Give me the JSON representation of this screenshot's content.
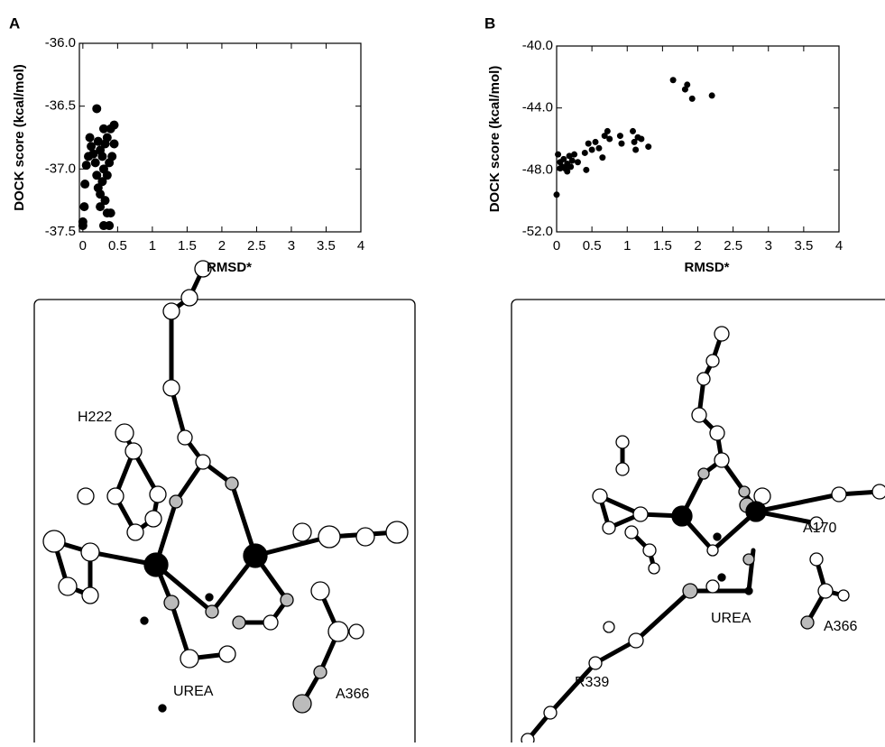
{
  "chart_data": [
    {
      "type": "scatter",
      "title": "A",
      "xlabel": "RMSD*",
      "ylabel": "DOCK score (kcal/mol)",
      "color": "#000000",
      "x": [
        0.0,
        0.02,
        0.03,
        0.05,
        0.08,
        0.1,
        0.12,
        0.15,
        0.2,
        0.18,
        0.2,
        0.22,
        0.25,
        0.22,
        0.25,
        0.28,
        0.3,
        0.32,
        0.3,
        0.28,
        0.32,
        0.35,
        0.3,
        0.38,
        0.4,
        0.35,
        0.38,
        0.4,
        0.45,
        0.45,
        0.42,
        0.35,
        0.25,
        0.0
      ],
      "values": [
        -37.45,
        -37.3,
        -37.12,
        -36.97,
        -36.9,
        -36.75,
        -36.82,
        -36.88,
        -36.52,
        -36.95,
        -37.05,
        -37.15,
        -37.2,
        -36.78,
        -36.85,
        -36.9,
        -36.68,
        -36.8,
        -37.0,
        -37.1,
        -37.25,
        -37.35,
        -37.45,
        -37.45,
        -37.35,
        -37.05,
        -36.95,
        -36.68,
        -36.65,
        -36.8,
        -36.9,
        -36.75,
        -37.3,
        -37.42
      ],
      "xlim": [
        -0.05,
        4
      ],
      "xticks": [
        0,
        0.5,
        1,
        1.5,
        2,
        2.5,
        3,
        3.5,
        4
      ],
      "ylim": [
        -37.5,
        -36.0
      ],
      "yticks": [
        {
          "value": -36,
          "label": "-36.0"
        },
        -36.5,
        {
          "value": -37,
          "label": "-37.0"
        },
        -37.5
      ]
    },
    {
      "type": "scatter",
      "title": "B",
      "xlabel": "RMSD*",
      "ylabel": "DOCK score (kcal/mol)",
      "color": "#000000",
      "x": [
        0,
        0.02,
        0.05,
        0.08,
        0.1,
        0.12,
        0.15,
        0.18,
        0.2,
        0.22,
        0.25,
        0.3,
        0.42,
        0.45,
        0.5,
        0.55,
        0.6,
        0.65,
        0.68,
        0.72,
        0.75,
        0.9,
        0.92,
        1.08,
        1.1,
        1.12,
        1.15,
        1.2,
        1.3,
        1.65,
        1.82,
        1.85,
        1.92,
        2.2,
        0.4,
        0.05,
        0.15
      ],
      "values": [
        -49.6,
        -47.0,
        -47.5,
        -47.8,
        -47.3,
        -47.9,
        -47.6,
        -47.1,
        -47.8,
        -47.4,
        -47.0,
        -47.5,
        -48.0,
        -46.3,
        -46.7,
        -46.2,
        -46.6,
        -47.2,
        -45.8,
        -45.5,
        -46.0,
        -45.8,
        -46.3,
        -45.5,
        -46.2,
        -46.7,
        -45.9,
        -46.0,
        -46.5,
        -42.2,
        -42.8,
        -42.5,
        -43.4,
        -43.2,
        -46.9,
        -47.9,
        -48.1
      ],
      "xlim": [
        0,
        4
      ],
      "xticks": [
        0,
        0.5,
        1,
        1.5,
        2,
        2.5,
        3,
        3.5,
        4
      ],
      "ylim": [
        -52,
        -40
      ],
      "yticks": [
        {
          "value": -40,
          "label": "-40.0"
        },
        {
          "value": -44,
          "label": "-44.0"
        },
        {
          "value": -48,
          "label": "-48.0"
        },
        {
          "value": -52,
          "label": "-52.0"
        }
      ]
    }
  ],
  "diagrams": [
    {
      "labels": [
        "H222",
        "UREA",
        "A366"
      ]
    },
    {
      "labels": [
        "A170",
        "UREA",
        "A366",
        "R339"
      ]
    }
  ]
}
